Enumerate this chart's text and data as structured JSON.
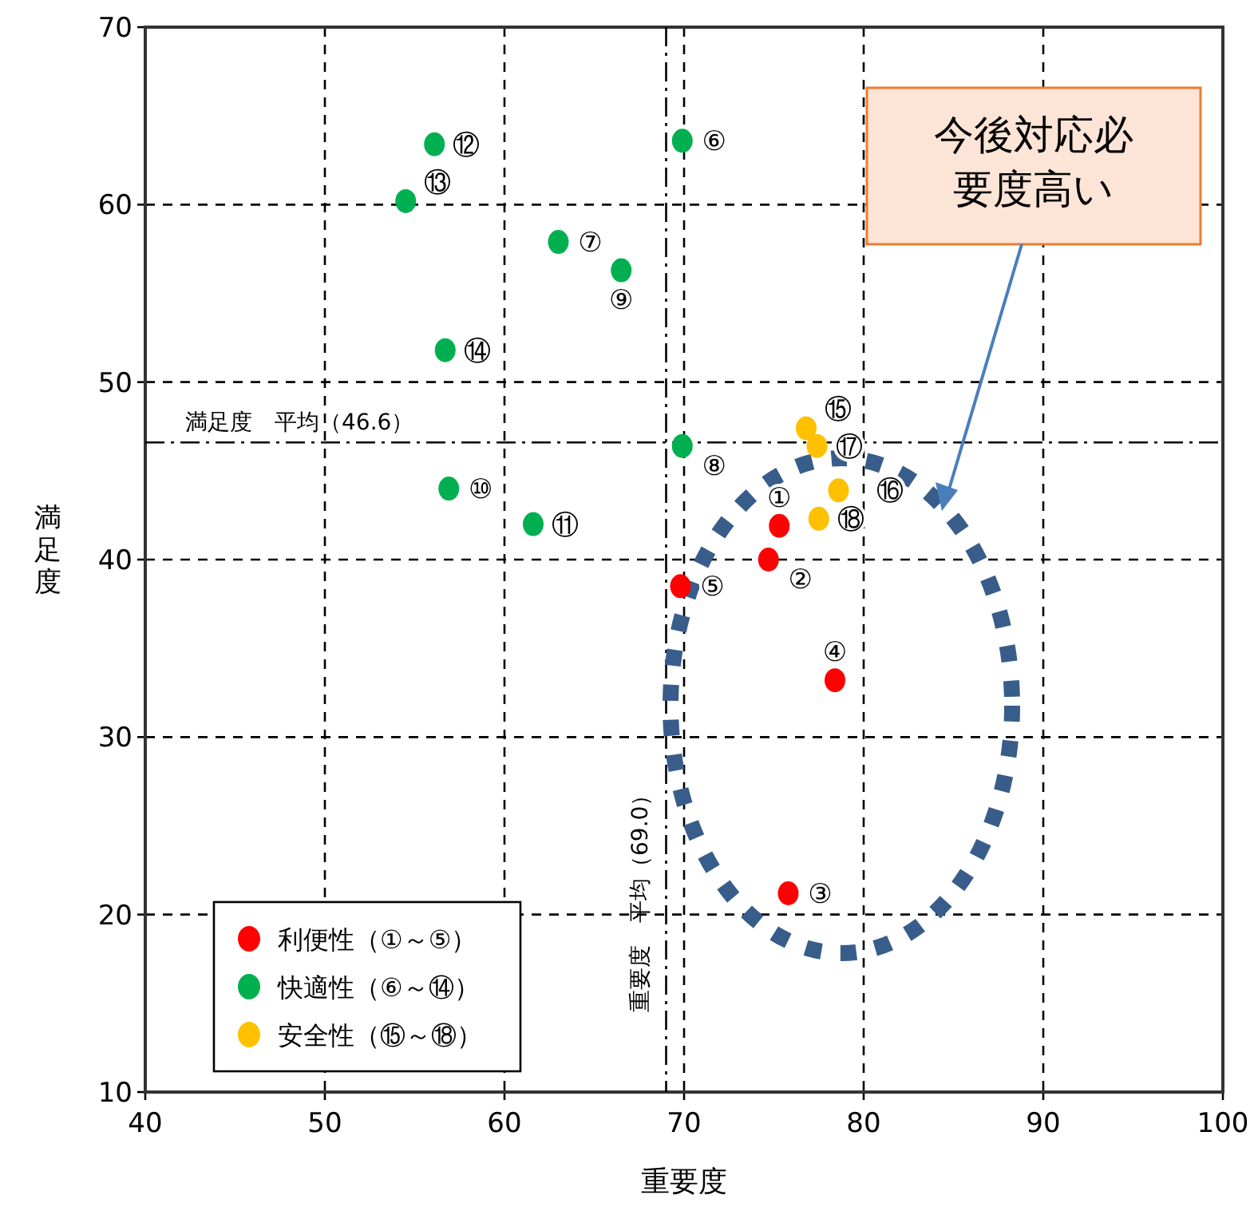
{
  "chart_data": {
    "type": "scatter",
    "xlabel": "重要度",
    "ylabel": "満足度",
    "xlim": [
      40,
      100
    ],
    "ylim": [
      10,
      70
    ],
    "xticks": [
      40,
      50,
      60,
      70,
      80,
      90,
      100
    ],
    "yticks": [
      10,
      20,
      30,
      40,
      50,
      60,
      70
    ],
    "grid": true,
    "legend": "bottom left",
    "marker": "circle",
    "series": [
      {
        "name": "利便性（①～⑤）",
        "color": "#ff0000",
        "x": [
          75.3,
          74.7,
          75.8,
          78.4,
          69.8
        ],
        "values": [
          41.9,
          40.0,
          21.2,
          33.2,
          38.5
        ]
      },
      {
        "name": "快適性（⑥～⑭）",
        "color": "#00b050",
        "x": [
          69.9,
          63.0,
          69.9,
          66.5,
          56.9,
          61.6,
          56.1,
          54.5,
          56.7
        ],
        "values": [
          63.6,
          57.9,
          46.4,
          56.3,
          44.0,
          42.0,
          63.4,
          60.2,
          51.8
        ]
      },
      {
        "name": "安全性（⑮～⑱）",
        "color": "#ffc000",
        "x": [
          76.8,
          78.6,
          77.4,
          77.5
        ],
        "values": [
          47.4,
          43.9,
          46.4,
          42.3
        ]
      }
    ],
    "ref_lines": [
      {
        "axis": "y",
        "value": 46.6,
        "label": "満足度　平均（46.6）"
      },
      {
        "axis": "x",
        "value": 69.0,
        "label": "重要度　平均（69.0）"
      }
    ],
    "annotations": [
      "今後対応必要度高い",
      {
        "text": "①",
        "x": 75.3,
        "y": 41.9
      },
      {
        "text": "②",
        "x": 74.7,
        "y": 40.0
      },
      {
        "text": "③",
        "x": 75.8,
        "y": 21.2
      },
      {
        "text": "④",
        "x": 78.4,
        "y": 33.2
      },
      {
        "text": "⑤",
        "x": 69.8,
        "y": 38.5
      },
      {
        "text": "⑥",
        "x": 69.9,
        "y": 63.6
      },
      {
        "text": "⑦",
        "x": 63.0,
        "y": 57.9
      },
      {
        "text": "⑧",
        "x": 69.9,
        "y": 46.4
      },
      {
        "text": "⑨",
        "x": 66.5,
        "y": 56.3
      },
      {
        "text": "⑩",
        "x": 56.9,
        "y": 44.0
      },
      {
        "text": "⑪",
        "x": 61.6,
        "y": 42.0
      },
      {
        "text": "⑫",
        "x": 56.1,
        "y": 63.4
      },
      {
        "text": "⑬",
        "x": 54.5,
        "y": 60.2
      },
      {
        "text": "⑭",
        "x": 56.7,
        "y": 51.8
      },
      {
        "text": "⑮",
        "x": 76.8,
        "y": 47.4
      },
      {
        "text": "⑯",
        "x": 78.6,
        "y": 43.9
      },
      {
        "text": "⑰",
        "x": 77.4,
        "y": 46.4
      },
      {
        "text": "⑱",
        "x": 77.5,
        "y": 42.3
      }
    ]
  }
}
